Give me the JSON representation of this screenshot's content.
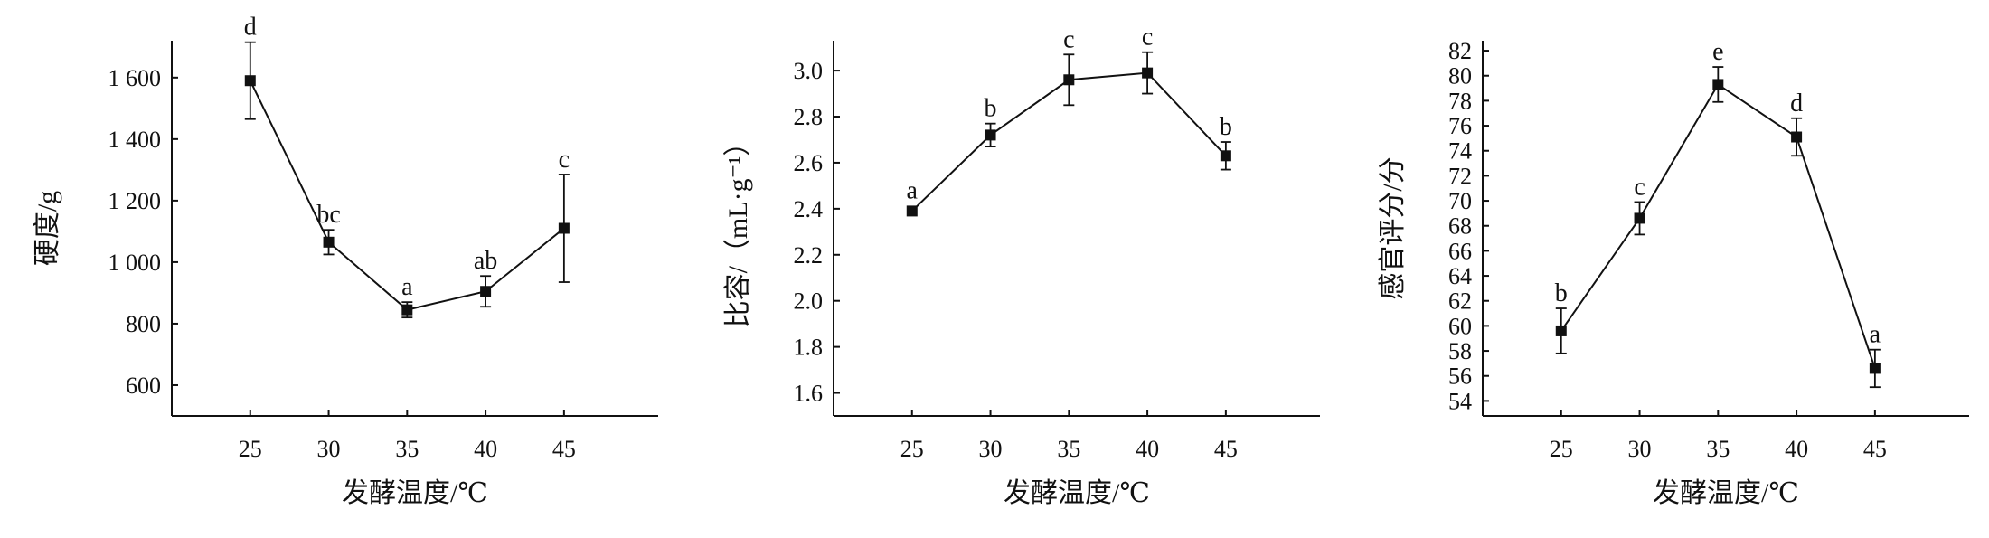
{
  "chart_data": [
    {
      "type": "line",
      "x": [
        25,
        30,
        35,
        40,
        45
      ],
      "xlabel": "发酵温度/℃",
      "ylabel": "硬度/g",
      "y_ticks": [
        600,
        800,
        1000,
        1200,
        1400,
        1600
      ],
      "y_tick_labels": [
        "600",
        "800",
        "1 000",
        "1 200",
        "1 400",
        "1 600"
      ],
      "ylim": [
        500,
        1720
      ],
      "xlim": [
        20,
        51
      ],
      "series": [
        {
          "values": [
            1590,
            1065,
            845,
            905,
            1110
          ],
          "errors": [
            125,
            40,
            25,
            50,
            175
          ],
          "labels": [
            "d",
            "bc",
            "a",
            "ab",
            "c"
          ]
        }
      ]
    },
    {
      "type": "line",
      "x": [
        25,
        30,
        35,
        40,
        45
      ],
      "xlabel": "发酵温度/℃",
      "ylabel": "比容/（mL·g⁻¹）",
      "y_ticks": [
        1.6,
        1.8,
        2.0,
        2.2,
        2.4,
        2.6,
        2.8,
        3.0
      ],
      "y_tick_labels": [
        "1.6",
        "1.8",
        "2.0",
        "2.2",
        "2.4",
        "2.6",
        "2.8",
        "3.0"
      ],
      "ylim": [
        1.5,
        3.13
      ],
      "xlim": [
        20,
        51
      ],
      "series": [
        {
          "values": [
            2.39,
            2.72,
            2.96,
            2.99,
            2.63
          ],
          "errors": [
            0.0,
            0.05,
            0.11,
            0.09,
            0.06
          ],
          "labels": [
            "a",
            "b",
            "c",
            "c",
            "b"
          ]
        }
      ]
    },
    {
      "type": "line",
      "x": [
        25,
        30,
        35,
        40,
        45
      ],
      "xlabel": "发酵温度/℃",
      "ylabel": "感官评分/分",
      "y_ticks": [
        54,
        56,
        58,
        60,
        62,
        64,
        66,
        68,
        70,
        72,
        74,
        76,
        78,
        80,
        82
      ],
      "y_tick_labels": [
        "54",
        "56",
        "58",
        "60",
        "62",
        "64",
        "66",
        "68",
        "70",
        "72",
        "74",
        "76",
        "78",
        "80",
        "82"
      ],
      "ylim": [
        52.8,
        82.8
      ],
      "xlim": [
        20,
        51
      ],
      "series": [
        {
          "values": [
            59.6,
            68.6,
            79.3,
            75.1,
            56.6
          ],
          "errors": [
            1.8,
            1.3,
            1.4,
            1.5,
            1.5
          ],
          "labels": [
            "b",
            "c",
            "e",
            "d",
            "a"
          ]
        }
      ]
    }
  ]
}
